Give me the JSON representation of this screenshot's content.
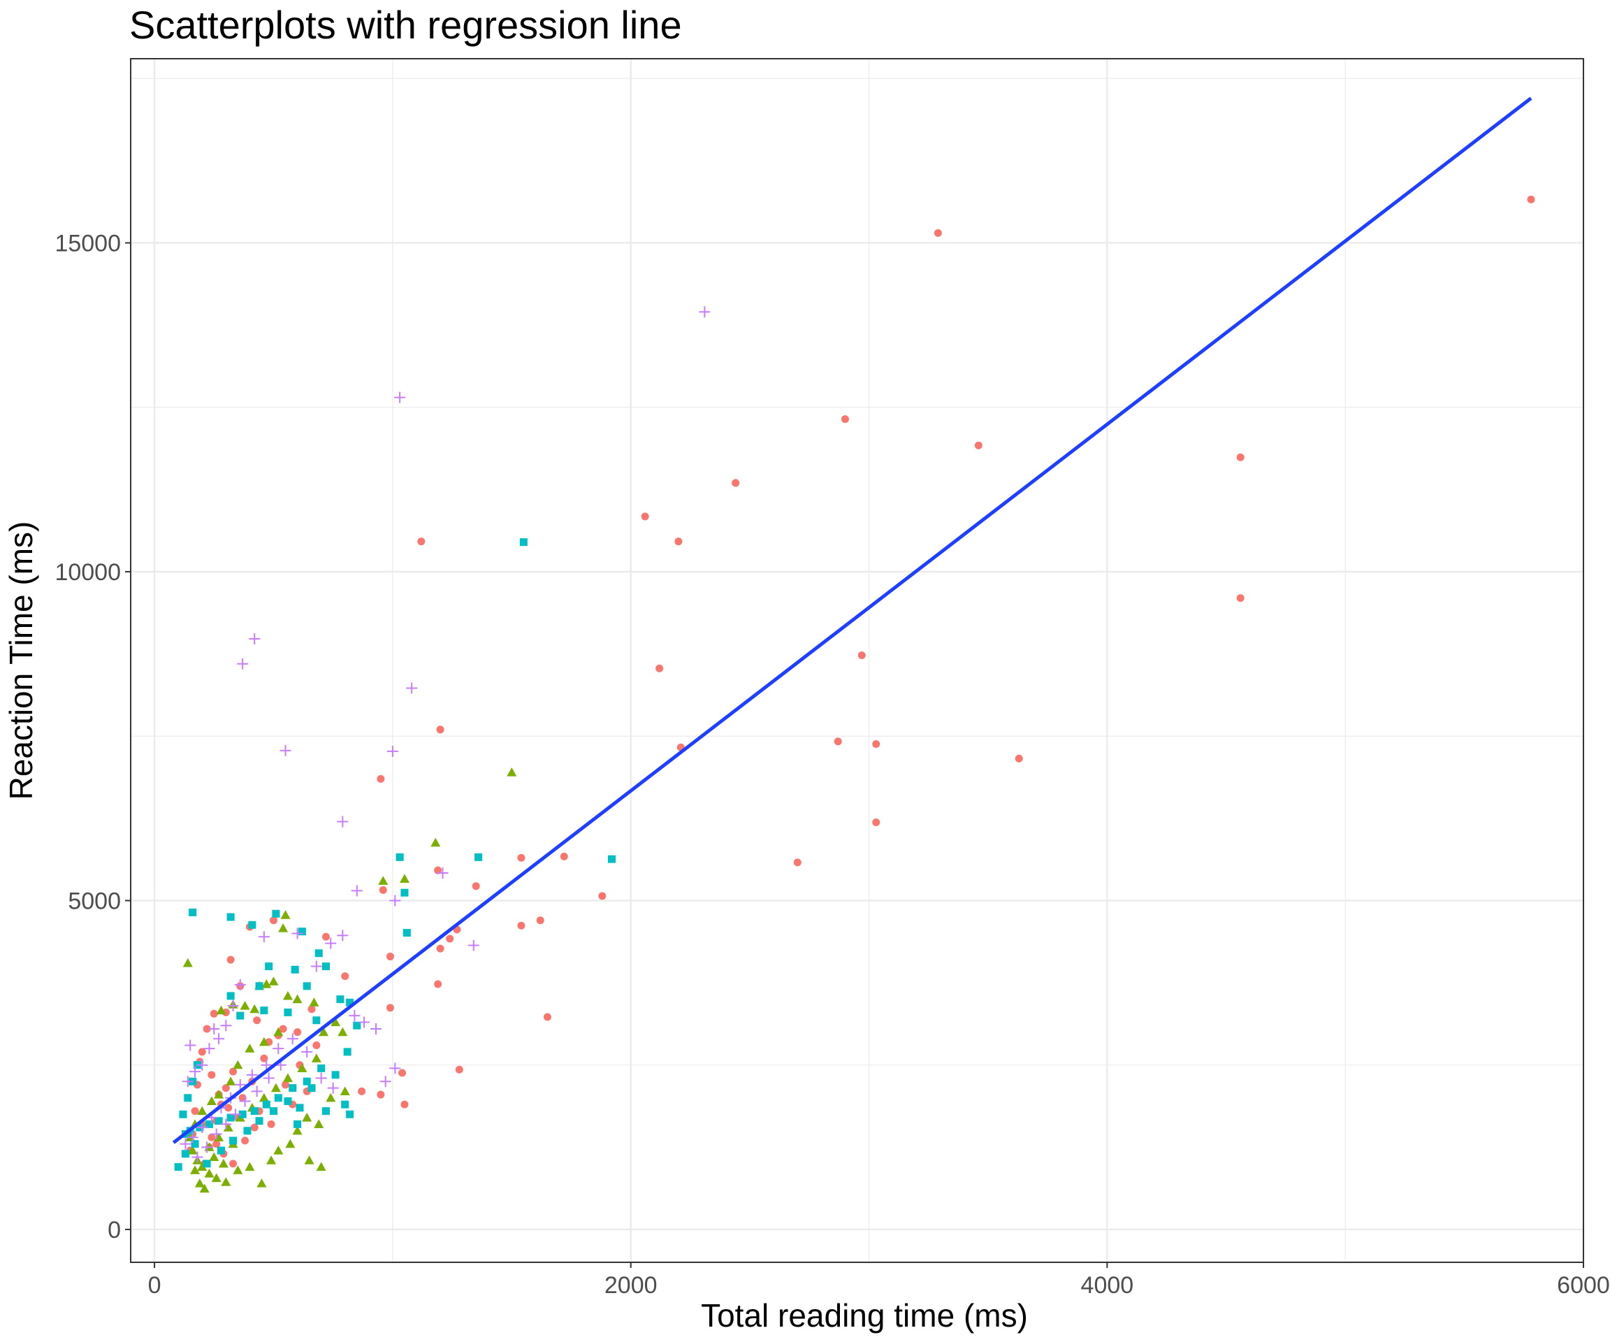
{
  "chart_data": {
    "type": "scatter",
    "title": "Scatterplots with regression line",
    "xlabel": "Total reading time (ms)",
    "ylabel": "Reaction Time (ms)",
    "xlim": [
      -100,
      6000
    ],
    "ylim": [
      -500,
      17800
    ],
    "x_ticks": [
      0,
      2000,
      4000,
      6000
    ],
    "y_ticks": [
      0,
      5000,
      10000,
      15000
    ],
    "grid": true,
    "legend": "none",
    "colors": {
      "series1": "#F8766D",
      "series2": "#7CAE00",
      "series3": "#00BFC4",
      "series4": "#C77CFF",
      "regression": "#1F3FFF",
      "grid": "#ebebeb",
      "panel_border": "#333333"
    },
    "series": [
      {
        "shape": "circle",
        "color": "#F8766D",
        "points": [
          [
            5780,
            15660
          ],
          [
            3290,
            15150
          ],
          [
            2900,
            12320
          ],
          [
            3460,
            11920
          ],
          [
            4560,
            11740
          ],
          [
            2440,
            11350
          ],
          [
            2060,
            10840
          ],
          [
            2200,
            10460
          ],
          [
            1120,
            10460
          ],
          [
            4560,
            9600
          ],
          [
            2120,
            8530
          ],
          [
            2970,
            8730
          ],
          [
            1200,
            7600
          ],
          [
            2870,
            7420
          ],
          [
            3030,
            7380
          ],
          [
            2210,
            7330
          ],
          [
            3630,
            7160
          ],
          [
            950,
            6850
          ],
          [
            3030,
            6190
          ],
          [
            2700,
            5580
          ],
          [
            1540,
            5650
          ],
          [
            1720,
            5670
          ],
          [
            1880,
            5070
          ],
          [
            1190,
            5460
          ],
          [
            1350,
            5220
          ],
          [
            960,
            5160
          ],
          [
            1540,
            4620
          ],
          [
            1620,
            4700
          ],
          [
            1270,
            4560
          ],
          [
            1240,
            4420
          ],
          [
            1200,
            4270
          ],
          [
            990,
            4150
          ],
          [
            1190,
            3730
          ],
          [
            1650,
            3230
          ],
          [
            990,
            3370
          ],
          [
            1280,
            2430
          ],
          [
            1040,
            2380
          ],
          [
            1050,
            1900
          ],
          [
            950,
            2050
          ],
          [
            870,
            2100
          ],
          [
            800,
            3850
          ],
          [
            720,
            4450
          ],
          [
            660,
            3350
          ],
          [
            600,
            3000
          ],
          [
            540,
            3050
          ],
          [
            500,
            4700
          ],
          [
            480,
            2850
          ],
          [
            430,
            3180
          ],
          [
            400,
            4600
          ],
          [
            360,
            3700
          ],
          [
            320,
            4100
          ],
          [
            300,
            3300
          ],
          [
            250,
            3280
          ],
          [
            220,
            3050
          ],
          [
            200,
            2700
          ],
          [
            190,
            2550
          ],
          [
            180,
            2200
          ],
          [
            170,
            1800
          ],
          [
            160,
            1450
          ],
          [
            150,
            1200
          ],
          [
            210,
            1000
          ],
          [
            240,
            1400
          ],
          [
            260,
            1650
          ],
          [
            280,
            1900
          ],
          [
            300,
            2150
          ],
          [
            330,
            2400
          ],
          [
            350,
            1700
          ],
          [
            370,
            2000
          ],
          [
            390,
            1500
          ],
          [
            410,
            2250
          ],
          [
            440,
            1800
          ],
          [
            460,
            2600
          ],
          [
            490,
            1600
          ],
          [
            520,
            2950
          ],
          [
            550,
            2200
          ],
          [
            580,
            1900
          ],
          [
            610,
            2500
          ],
          [
            640,
            2100
          ],
          [
            680,
            2800
          ],
          [
            720,
            1800
          ],
          [
            240,
            2350
          ],
          [
            270,
            2050
          ],
          [
            230,
            1250
          ],
          [
            290,
            1150
          ],
          [
            330,
            1000
          ],
          [
            380,
            1350
          ],
          [
            420,
            1550
          ],
          [
            200,
            1600
          ],
          [
            260,
            1300
          ],
          [
            310,
            1850
          ]
        ]
      },
      {
        "shape": "triangle",
        "color": "#7CAE00",
        "points": [
          [
            1500,
            6950
          ],
          [
            1180,
            5880
          ],
          [
            960,
            5300
          ],
          [
            1050,
            5330
          ],
          [
            550,
            4780
          ],
          [
            540,
            4580
          ],
          [
            140,
            4050
          ],
          [
            500,
            3770
          ],
          [
            470,
            3730
          ],
          [
            440,
            3700
          ],
          [
            330,
            3420
          ],
          [
            380,
            3400
          ],
          [
            420,
            3350
          ],
          [
            280,
            3330
          ],
          [
            560,
            3550
          ],
          [
            600,
            3500
          ],
          [
            670,
            3450
          ],
          [
            790,
            3000
          ],
          [
            760,
            3150
          ],
          [
            710,
            3000
          ],
          [
            520,
            3000
          ],
          [
            460,
            2850
          ],
          [
            400,
            2750
          ],
          [
            350,
            2500
          ],
          [
            320,
            2250
          ],
          [
            270,
            2050
          ],
          [
            240,
            1950
          ],
          [
            200,
            1800
          ],
          [
            170,
            1600
          ],
          [
            150,
            1400
          ],
          [
            160,
            1200
          ],
          [
            180,
            1050
          ],
          [
            200,
            950
          ],
          [
            230,
            850
          ],
          [
            260,
            780
          ],
          [
            300,
            720
          ],
          [
            350,
            900
          ],
          [
            400,
            950
          ],
          [
            450,
            700
          ],
          [
            490,
            1050
          ],
          [
            520,
            1200
          ],
          [
            570,
            1300
          ],
          [
            600,
            1500
          ],
          [
            650,
            1050
          ],
          [
            690,
            1600
          ],
          [
            230,
            1250
          ],
          [
            270,
            1400
          ],
          [
            310,
            1550
          ],
          [
            360,
            1700
          ],
          [
            410,
            1850
          ],
          [
            460,
            2000
          ],
          [
            510,
            2150
          ],
          [
            560,
            2300
          ],
          [
            620,
            2450
          ],
          [
            680,
            2600
          ],
          [
            190,
            700
          ],
          [
            210,
            620
          ],
          [
            170,
            900
          ],
          [
            250,
            1100
          ],
          [
            290,
            1000
          ],
          [
            700,
            950
          ],
          [
            640,
            1700
          ],
          [
            740,
            2000
          ],
          [
            800,
            2100
          ],
          [
            330,
            1300
          ]
        ]
      },
      {
        "shape": "square",
        "color": "#00BFC4",
        "points": [
          [
            1550,
            10450
          ],
          [
            1030,
            5660
          ],
          [
            1360,
            5660
          ],
          [
            1920,
            5630
          ],
          [
            1050,
            5120
          ],
          [
            1060,
            4510
          ],
          [
            510,
            4800
          ],
          [
            160,
            4820
          ],
          [
            320,
            4750
          ],
          [
            410,
            4630
          ],
          [
            620,
            4530
          ],
          [
            690,
            4200
          ],
          [
            480,
            4000
          ],
          [
            440,
            3700
          ],
          [
            640,
            3700
          ],
          [
            720,
            4000
          ],
          [
            590,
            3950
          ],
          [
            780,
            3500
          ],
          [
            820,
            3450
          ],
          [
            850,
            3100
          ],
          [
            320,
            3550
          ],
          [
            360,
            3250
          ],
          [
            460,
            3330
          ],
          [
            560,
            3300
          ],
          [
            680,
            3180
          ],
          [
            810,
            2700
          ],
          [
            760,
            2350
          ],
          [
            700,
            2450
          ],
          [
            640,
            2250
          ],
          [
            580,
            2150
          ],
          [
            520,
            2000
          ],
          [
            470,
            1900
          ],
          [
            420,
            1800
          ],
          [
            370,
            1750
          ],
          [
            320,
            1700
          ],
          [
            270,
            1650
          ],
          [
            230,
            1600
          ],
          [
            190,
            1550
          ],
          [
            150,
            1500
          ],
          [
            130,
            1450
          ],
          [
            120,
            1750
          ],
          [
            140,
            2000
          ],
          [
            160,
            2250
          ],
          [
            180,
            2500
          ],
          [
            100,
            950
          ],
          [
            130,
            1150
          ],
          [
            170,
            1300
          ],
          [
            220,
            1000
          ],
          [
            280,
            1200
          ],
          [
            330,
            1350
          ],
          [
            390,
            1500
          ],
          [
            440,
            1650
          ],
          [
            500,
            1800
          ],
          [
            560,
            1950
          ],
          [
            610,
            1850
          ],
          [
            660,
            2150
          ],
          [
            720,
            1800
          ],
          [
            800,
            1900
          ],
          [
            820,
            1750
          ],
          [
            600,
            1600
          ]
        ]
      },
      {
        "shape": "plus",
        "color": "#C77CFF",
        "points": [
          [
            2310,
            13950
          ],
          [
            1030,
            12650
          ],
          [
            420,
            8980
          ],
          [
            370,
            8600
          ],
          [
            1080,
            8230
          ],
          [
            550,
            7280
          ],
          [
            1000,
            7270
          ],
          [
            790,
            6200
          ],
          [
            850,
            5150
          ],
          [
            1010,
            5000
          ],
          [
            1210,
            5420
          ],
          [
            1340,
            4320
          ],
          [
            790,
            4470
          ],
          [
            740,
            4350
          ],
          [
            680,
            4000
          ],
          [
            600,
            4500
          ],
          [
            460,
            4450
          ],
          [
            360,
            3720
          ],
          [
            330,
            3400
          ],
          [
            300,
            3100
          ],
          [
            270,
            2900
          ],
          [
            230,
            2750
          ],
          [
            200,
            2500
          ],
          [
            170,
            2400
          ],
          [
            140,
            2250
          ],
          [
            840,
            3250
          ],
          [
            880,
            3150
          ],
          [
            930,
            3050
          ],
          [
            1010,
            2450
          ],
          [
            970,
            2250
          ],
          [
            750,
            2150
          ],
          [
            700,
            2300
          ],
          [
            640,
            2700
          ],
          [
            580,
            2900
          ],
          [
            520,
            2750
          ],
          [
            470,
            2500
          ],
          [
            410,
            2350
          ],
          [
            360,
            2200
          ],
          [
            320,
            2000
          ],
          [
            280,
            1850
          ],
          [
            240,
            1700
          ],
          [
            200,
            1550
          ],
          [
            160,
            1400
          ],
          [
            130,
            1300
          ],
          [
            180,
            1100
          ],
          [
            220,
            1250
          ],
          [
            260,
            1450
          ],
          [
            300,
            1600
          ],
          [
            340,
            1750
          ],
          [
            380,
            1950
          ],
          [
            430,
            2100
          ],
          [
            480,
            2300
          ],
          [
            530,
            2500
          ],
          [
            250,
            3050
          ],
          [
            150,
            2800
          ]
        ]
      }
    ],
    "regression_line": {
      "x": [
        80,
        5780
      ],
      "y": [
        1320,
        17200
      ]
    }
  }
}
